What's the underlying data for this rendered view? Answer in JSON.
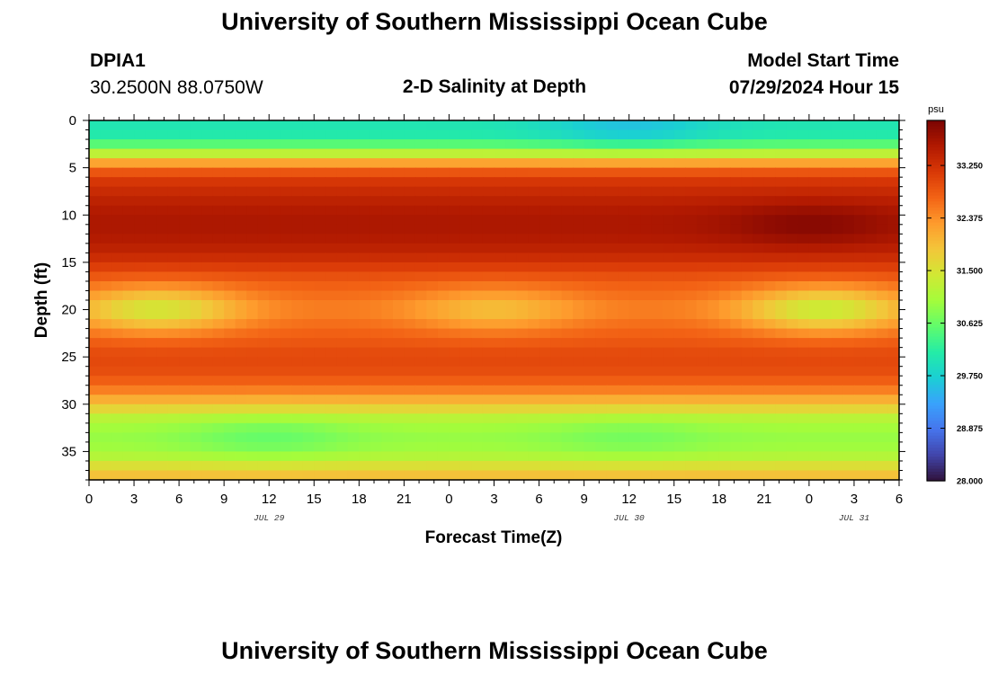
{
  "header": {
    "title": "University of Southern Mississippi Ocean Cube",
    "station_id": "DPIA1",
    "station_coords": "30.2500N  88.0750W",
    "chart_title": "2-D Salinity at Depth",
    "model_start_label": "Model Start Time",
    "model_start_value": "07/29/2024 Hour 15"
  },
  "footer": {
    "title": "University of Southern Mississippi Ocean Cube"
  },
  "chart_data": {
    "type": "heatmap",
    "title": "2-D Salinity at Depth",
    "xlabel": "Forecast Time(Z)",
    "ylabel": "Depth (ft)",
    "x_ticks": [
      "0",
      "3",
      "6",
      "9",
      "12",
      "15",
      "18",
      "21",
      "0",
      "3",
      "6",
      "9",
      "12",
      "15",
      "18",
      "21",
      "0",
      "3",
      "6"
    ],
    "x_date_labels": [
      {
        "label": "JUL 29",
        "tick_index": 4
      },
      {
        "label": "JUL 30",
        "tick_index": 12
      },
      {
        "label": "JUL 31",
        "tick_index": 17
      }
    ],
    "y_ticks": [
      "0",
      "5",
      "10",
      "15",
      "20",
      "25",
      "30",
      "35"
    ],
    "ylim": [
      0,
      38
    ],
    "xlim_hours": [
      0,
      54
    ],
    "colorbar": {
      "unit": "psu",
      "ticks": [
        "33.250",
        "32.375",
        "31.500",
        "30.625",
        "29.750",
        "28.875",
        "28.000"
      ],
      "min": 28.0,
      "max": 34.0,
      "colors": [
        "#30123b",
        "#4145ab",
        "#4675ed",
        "#39a2fc",
        "#1bcfd4",
        "#24eca6",
        "#61fc6c",
        "#a4fc3b",
        "#d1e834",
        "#f3c63a",
        "#fe9b2d",
        "#f36315",
        "#d93806",
        "#b11901",
        "#7a0402"
      ]
    },
    "salinity_profile": {
      "depth_ft": [
        0,
        1.5,
        3,
        4,
        5,
        6,
        8,
        10,
        12,
        14,
        15,
        16,
        17,
        18,
        20,
        22,
        23,
        25,
        27,
        28.5,
        30,
        31.5,
        33,
        35,
        36,
        37,
        38
      ],
      "psu": [
        30.0,
        30.1,
        30.7,
        31.8,
        32.6,
        33.1,
        33.4,
        33.6,
        33.6,
        33.4,
        33.2,
        33.0,
        32.8,
        32.7,
        32.5,
        32.7,
        32.8,
        33.0,
        32.9,
        32.5,
        31.9,
        31.2,
        30.9,
        31.0,
        31.3,
        31.8,
        32.0
      ]
    },
    "features": [
      {
        "label": "mid-depth low salinity",
        "center_hour": 4.5,
        "center_depth_ft": 20,
        "psu": 31.4
      },
      {
        "label": "mid-depth low salinity",
        "center_hour": 27,
        "center_depth_ft": 20,
        "psu": 31.9
      },
      {
        "label": "mid-depth low salinity",
        "center_hour": 49,
        "center_depth_ft": 20,
        "psu": 31.3
      },
      {
        "label": "surface freshening",
        "center_hour": 36,
        "center_depth_ft": 0.5,
        "psu": 29.6
      },
      {
        "label": "bottom low salinity",
        "center_hour": 12,
        "center_depth_ft": 33.5,
        "psu": 30.6
      },
      {
        "label": "bottom low salinity",
        "center_hour": 36,
        "center_depth_ft": 33.5,
        "psu": 30.7
      },
      {
        "label": "subsurface maximum",
        "center_hour": 48,
        "center_depth_ft": 11,
        "psu": 33.9
      }
    ],
    "grid": false
  }
}
